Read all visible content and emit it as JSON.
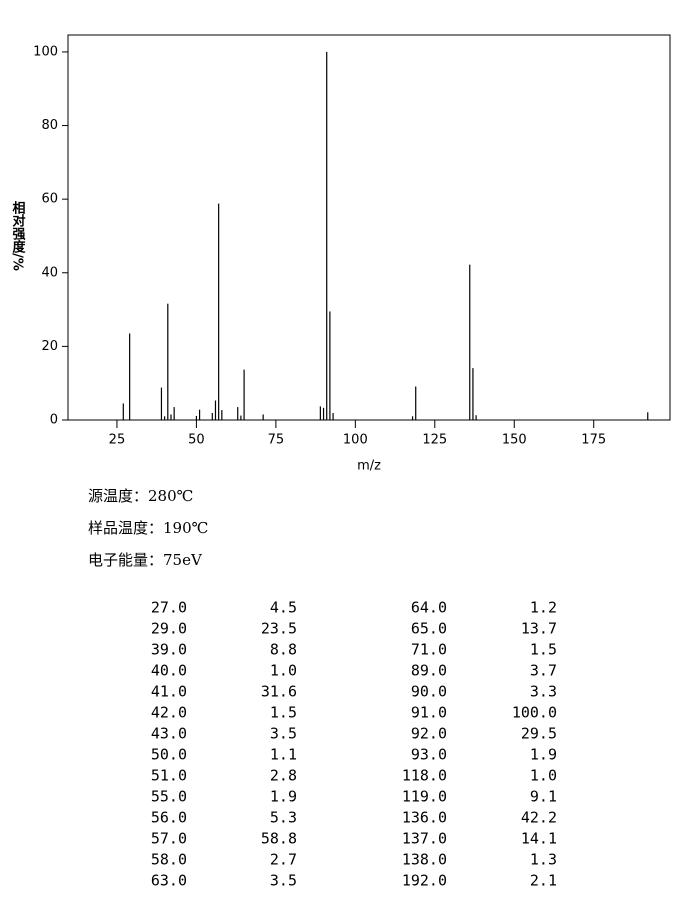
{
  "chart_data": {
    "type": "stem",
    "x": [
      27,
      29,
      39,
      40,
      41,
      42,
      43,
      50,
      51,
      55,
      56,
      57,
      58,
      63,
      64,
      65,
      71,
      89,
      90,
      91,
      92,
      93,
      118,
      119,
      136,
      137,
      138,
      192
    ],
    "values": [
      4.5,
      23.5,
      8.8,
      1.0,
      31.6,
      1.5,
      3.5,
      1.1,
      2.8,
      1.9,
      5.3,
      58.8,
      2.7,
      3.5,
      1.2,
      13.7,
      1.5,
      3.7,
      3.3,
      100.0,
      29.5,
      1.9,
      1.0,
      9.1,
      42.2,
      14.1,
      1.3,
      2.1
    ],
    "color": "#000000",
    "xlim": [
      9.6,
      199
    ],
    "ylim": [
      0,
      104.6
    ],
    "xticks": [
      25,
      50,
      75,
      100,
      125,
      150,
      175
    ],
    "yticks": [
      0,
      20,
      40,
      60,
      80,
      100
    ],
    "xlabel": "m/z",
    "ylabel": "相对强度/%"
  },
  "info": [
    "源温度：280℃",
    "样品温度：190℃",
    "电子能量：75eV"
  ],
  "table": {
    "rows": [
      [
        "27.0",
        "4.5",
        "64.0",
        "1.2"
      ],
      [
        "29.0",
        "23.5",
        "65.0",
        "13.7"
      ],
      [
        "39.0",
        "8.8",
        "71.0",
        "1.5"
      ],
      [
        "40.0",
        "1.0",
        "89.0",
        "3.7"
      ],
      [
        "41.0",
        "31.6",
        "90.0",
        "3.3"
      ],
      [
        "42.0",
        "1.5",
        "91.0",
        "100.0"
      ],
      [
        "43.0",
        "3.5",
        "92.0",
        "29.5"
      ],
      [
        "50.0",
        "1.1",
        "93.0",
        "1.9"
      ],
      [
        "51.0",
        "2.8",
        "118.0",
        "1.0"
      ],
      [
        "55.0",
        "1.9",
        "119.0",
        "9.1"
      ],
      [
        "56.0",
        "5.3",
        "136.0",
        "42.2"
      ],
      [
        "57.0",
        "58.8",
        "137.0",
        "14.1"
      ],
      [
        "58.0",
        "2.7",
        "138.0",
        "1.3"
      ],
      [
        "63.0",
        "3.5",
        "192.0",
        "2.1"
      ]
    ]
  }
}
